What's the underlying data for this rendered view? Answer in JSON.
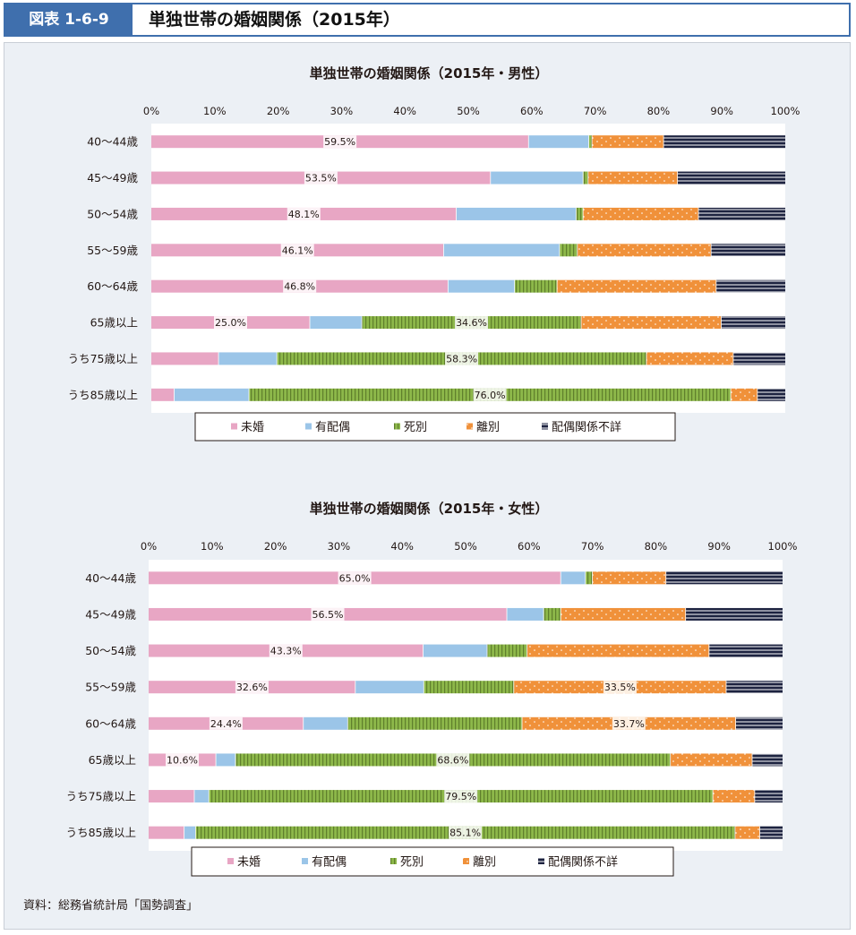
{
  "header": {
    "fig_label": "図表 1-6-9",
    "title": "単独世帯の婚姻関係（2015年）"
  },
  "colors": {
    "unmarried": "#e8a6c4",
    "married": "#9bc5e8",
    "widowed": "#8db84a",
    "widowed_stripe": "#5f7f2c",
    "divorced": "#f0913a",
    "unknown": "#1d2340",
    "unknown_stripe": "#ffffff"
  },
  "legend": [
    "未婚",
    "有配偶",
    "死別",
    "離別",
    "配偶関係不詳"
  ],
  "source": "資料：総務省統計局「国勢調査」",
  "chart_data": [
    {
      "type": "bar",
      "orientation": "horizontal",
      "stacked": "percent",
      "title": "単独世帯の婚姻関係（2015年・男性）",
      "xlim": [
        0,
        100
      ],
      "xticks": [
        "0%",
        "10%",
        "20%",
        "30%",
        "40%",
        "50%",
        "60%",
        "70%",
        "80%",
        "90%",
        "100%"
      ],
      "categories": [
        "40～44歳",
        "45～49歳",
        "50～54歳",
        "55～59歳",
        "60～64歳",
        "65歳以上",
        "うち75歳以上",
        "うち85歳以上"
      ],
      "series": [
        {
          "name": "未婚",
          "key": "unmarried",
          "values": [
            59.5,
            53.5,
            48.1,
            46.1,
            46.8,
            25.0,
            10.6,
            3.6
          ]
        },
        {
          "name": "有配偶",
          "key": "married",
          "values": [
            9.5,
            14.6,
            18.9,
            18.3,
            10.5,
            8.2,
            9.2,
            11.8
          ]
        },
        {
          "name": "死別",
          "key": "widowed",
          "values": [
            0.5,
            0.8,
            1.1,
            2.8,
            6.7,
            34.6,
            58.3,
            76.0
          ]
        },
        {
          "name": "離別",
          "key": "divorced",
          "values": [
            11.3,
            14.1,
            18.2,
            21.1,
            25.1,
            22.1,
            13.7,
            4.2
          ]
        },
        {
          "name": "配偶関係不詳",
          "key": "unknown",
          "values": [
            19.2,
            17.0,
            13.7,
            11.7,
            10.9,
            10.1,
            8.2,
            4.4
          ]
        }
      ],
      "data_labels": [
        {
          "category": 0,
          "series": "未婚",
          "text": "59.5%"
        },
        {
          "category": 1,
          "series": "未婚",
          "text": "53.5%"
        },
        {
          "category": 2,
          "series": "未婚",
          "text": "48.1%"
        },
        {
          "category": 3,
          "series": "未婚",
          "text": "46.1%"
        },
        {
          "category": 4,
          "series": "未婚",
          "text": "46.8%"
        },
        {
          "category": 5,
          "series": "未婚",
          "text": "25.0%"
        },
        {
          "category": 5,
          "series": "死別",
          "text": "34.6%"
        },
        {
          "category": 6,
          "series": "死別",
          "text": "58.3%"
        },
        {
          "category": 7,
          "series": "死別",
          "text": "76.0%"
        }
      ]
    },
    {
      "type": "bar",
      "orientation": "horizontal",
      "stacked": "percent",
      "title": "単独世帯の婚姻関係（2015年・女性）",
      "xlim": [
        0,
        100
      ],
      "xticks": [
        "0%",
        "10%",
        "20%",
        "30%",
        "40%",
        "50%",
        "60%",
        "70%",
        "80%",
        "90%",
        "100%"
      ],
      "categories": [
        "40～44歳",
        "45～49歳",
        "50～54歳",
        "55～59歳",
        "60～64歳",
        "65歳以上",
        "うち75歳以上",
        "うち85歳以上"
      ],
      "series": [
        {
          "name": "未婚",
          "key": "unmarried",
          "values": [
            65.0,
            56.5,
            43.3,
            32.6,
            24.4,
            10.6,
            7.2,
            5.6
          ]
        },
        {
          "name": "有配偶",
          "key": "married",
          "values": [
            3.9,
            5.8,
            10.1,
            10.8,
            7.0,
            3.1,
            2.3,
            1.8
          ]
        },
        {
          "name": "死別",
          "key": "widowed",
          "values": [
            1.1,
            2.7,
            6.3,
            14.2,
            27.5,
            68.6,
            79.5,
            85.1
          ]
        },
        {
          "name": "離別",
          "key": "divorced",
          "values": [
            11.6,
            19.7,
            28.7,
            33.5,
            33.7,
            12.9,
            6.6,
            3.9
          ]
        },
        {
          "name": "配偶関係不詳",
          "key": "unknown",
          "values": [
            18.4,
            15.3,
            11.6,
            8.9,
            7.4,
            4.8,
            4.4,
            3.6
          ]
        }
      ],
      "data_labels": [
        {
          "category": 0,
          "series": "未婚",
          "text": "65.0%"
        },
        {
          "category": 1,
          "series": "未婚",
          "text": "56.5%"
        },
        {
          "category": 2,
          "series": "未婚",
          "text": "43.3%"
        },
        {
          "category": 3,
          "series": "未婚",
          "text": "32.6%"
        },
        {
          "category": 4,
          "series": "未婚",
          "text": "24.4%"
        },
        {
          "category": 5,
          "series": "未婚",
          "text": "10.6%"
        },
        {
          "category": 3,
          "series": "離別",
          "text": "33.5%"
        },
        {
          "category": 4,
          "series": "離別",
          "text": "33.7%"
        },
        {
          "category": 5,
          "series": "死別",
          "text": "68.6%"
        },
        {
          "category": 6,
          "series": "死別",
          "text": "79.5%"
        },
        {
          "category": 7,
          "series": "死別",
          "text": "85.1%"
        }
      ]
    }
  ]
}
